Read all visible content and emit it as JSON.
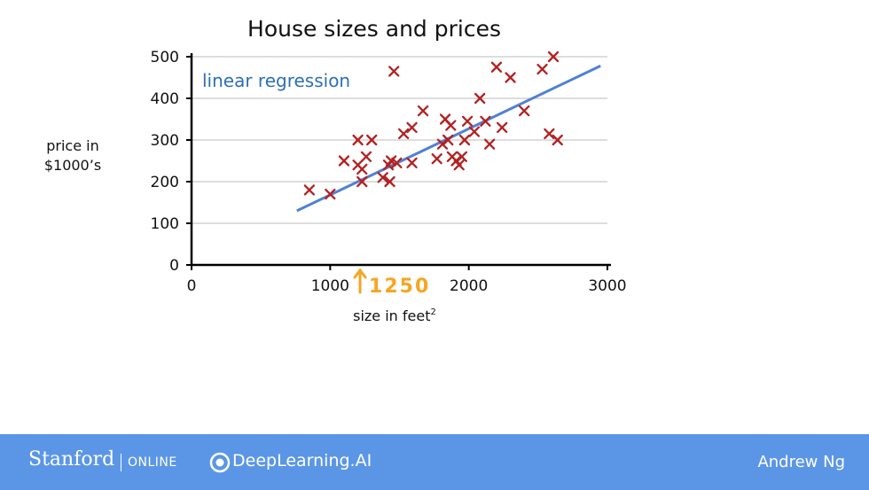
{
  "chart_data": {
    "type": "scatter",
    "title": "House sizes and prices",
    "xlabel": "size in feet",
    "xlabel_superscript": "2",
    "ylabel_lines": [
      "price in",
      "$1000’s"
    ],
    "xlim": [
      0,
      3000
    ],
    "ylim": [
      0,
      500
    ],
    "x_ticks": [
      0,
      1000,
      2000,
      3000
    ],
    "y_ticks": [
      0,
      100,
      200,
      300,
      400,
      500
    ],
    "grid": "horizontal",
    "marker": "x",
    "points": [
      [
        850,
        180
      ],
      [
        1000,
        170
      ],
      [
        1100,
        250
      ],
      [
        1200,
        300
      ],
      [
        1200,
        240
      ],
      [
        1230,
        230
      ],
      [
        1230,
        200
      ],
      [
        1260,
        260
      ],
      [
        1300,
        300
      ],
      [
        1380,
        210
      ],
      [
        1420,
        240
      ],
      [
        1430,
        200
      ],
      [
        1440,
        250
      ],
      [
        1460,
        465
      ],
      [
        1480,
        245
      ],
      [
        1530,
        315
      ],
      [
        1590,
        330
      ],
      [
        1590,
        245
      ],
      [
        1670,
        370
      ],
      [
        1770,
        255
      ],
      [
        1810,
        290
      ],
      [
        1830,
        350
      ],
      [
        1850,
        300
      ],
      [
        1870,
        335
      ],
      [
        1880,
        260
      ],
      [
        1910,
        250
      ],
      [
        1930,
        240
      ],
      [
        1950,
        260
      ],
      [
        1970,
        300
      ],
      [
        1990,
        345
      ],
      [
        2040,
        320
      ],
      [
        2080,
        400
      ],
      [
        2120,
        345
      ],
      [
        2150,
        290
      ],
      [
        2200,
        475
      ],
      [
        2240,
        330
      ],
      [
        2300,
        450
      ],
      [
        2400,
        370
      ],
      [
        2530,
        470
      ],
      [
        2580,
        315
      ],
      [
        2610,
        500
      ],
      [
        2640,
        300
      ]
    ],
    "series": [
      {
        "name": "linear regression",
        "type": "line",
        "x": [
          760,
          2950
        ],
        "y": [
          130,
          478
        ]
      }
    ],
    "annotation": "linear regression",
    "hand_note": {
      "text": "1250",
      "x": 1350
    },
    "colors": {
      "points": "#b22222",
      "line": "#4f81d6",
      "annotation": "#2e6fb5",
      "hand_note": "#f5a623",
      "grid": "#bbbbbb",
      "axis": "#000000"
    }
  },
  "footer": {
    "brand": "Stanford",
    "brand_suffix": "ONLINE",
    "partner": "DeepLearning.AI",
    "presenter": "Andrew Ng",
    "background": "#5b96e6"
  }
}
